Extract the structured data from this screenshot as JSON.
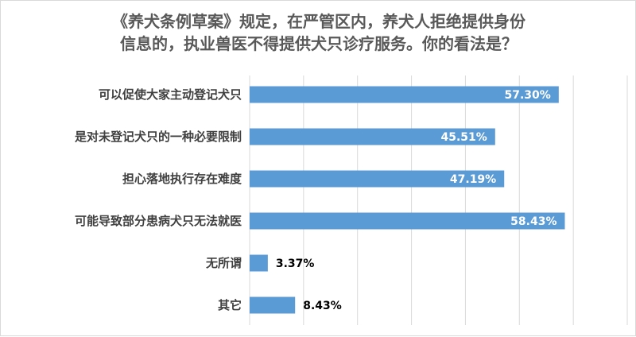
{
  "chart_data": {
    "type": "bar",
    "orientation": "horizontal",
    "title_lines": [
      "《养犬条例草案》规定，在严管区内，养犬人拒绝提供身份",
      "信息的，执业兽医不得提供犬只诊疗服务。你的看法是？"
    ],
    "categories": [
      "可以促使大家主动登记犬只",
      "是对未登记犬只的一种必要限制",
      "担心落地执行存在难度",
      "可能导致部分患病犬只无法就医",
      "无所谓",
      "其它"
    ],
    "values": [
      57.3,
      45.51,
      47.19,
      58.43,
      3.37,
      8.43
    ],
    "value_labels": [
      "57.30%",
      "45.51%",
      "47.19%",
      "58.43%",
      "3.37%",
      "8.43%"
    ],
    "xlim": [
      0,
      70
    ],
    "grid": true,
    "legend": "none",
    "bar_color": "#5b9bd5"
  }
}
